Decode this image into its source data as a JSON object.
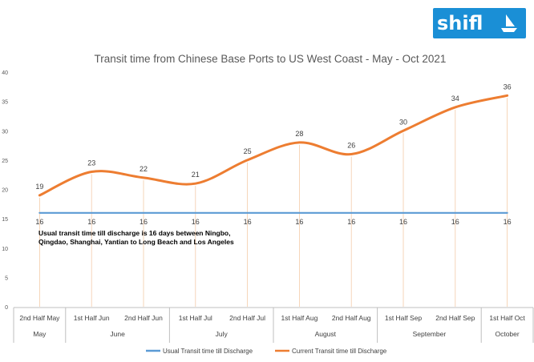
{
  "brand": {
    "name": "shifl",
    "logo_icon": "ship-sail-icon",
    "color": "#1a8fd6"
  },
  "chart_data": {
    "type": "line",
    "title": "Transit time from Chinese Base Ports to US West Coast - May - Oct 2021",
    "categories": [
      "2nd Half May",
      "1st Half Jun",
      "2nd Half Jun",
      "1st Half Jul",
      "2nd Half Jul",
      "1st Half Aug",
      "2nd Half Aug",
      "1st Half Sep",
      "2nd Half Sep",
      "1st Half Oct"
    ],
    "groups": [
      {
        "label": "May",
        "span": 1
      },
      {
        "label": "June",
        "span": 2
      },
      {
        "label": "July",
        "span": 2
      },
      {
        "label": "August",
        "span": 2
      },
      {
        "label": "September",
        "span": 2
      },
      {
        "label": "October",
        "span": 1
      }
    ],
    "ylim": [
      0,
      40
    ],
    "yticks": [
      "0",
      "5",
      "10",
      "15",
      "20",
      "25",
      "30",
      "35",
      "40"
    ],
    "series": [
      {
        "name": "Usual Transit time till Discharge",
        "color": "#5b9bd5",
        "values": [
          16,
          16,
          16,
          16,
          16,
          16,
          16,
          16,
          16,
          16
        ]
      },
      {
        "name": "Current Transit time till Discharge",
        "color": "#ed7d31",
        "values": [
          19,
          23,
          22,
          21,
          25,
          28,
          26,
          30,
          34,
          36
        ]
      }
    ],
    "annotation": "Usual transit time till discharge is 16 days between Ningbo, Qingdao, Shanghai, Yantian to Long Beach and Los Angeles",
    "legend_position": "bottom",
    "grid": false
  }
}
